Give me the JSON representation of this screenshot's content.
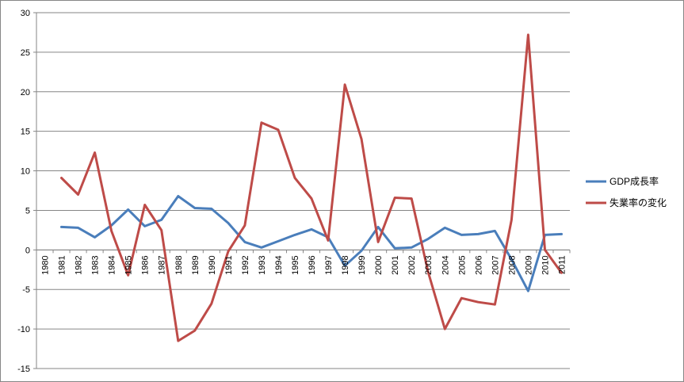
{
  "chart_data": {
    "type": "line",
    "title": "",
    "xlabel": "",
    "ylabel": "",
    "ylim": [
      -15,
      30
    ],
    "yticks": [
      -15,
      -10,
      -5,
      0,
      5,
      10,
      15,
      20,
      25,
      30
    ],
    "grid": true,
    "legend_position": "right",
    "categories": [
      "1980",
      "1981",
      "1982",
      "1983",
      "1984",
      "1985",
      "1986",
      "1987",
      "1988",
      "1989",
      "1990",
      "1991",
      "1992",
      "1993",
      "1994",
      "1995",
      "1996",
      "1997",
      "1998",
      "1999",
      "2000",
      "2001",
      "2002",
      "2003",
      "2004",
      "2005",
      "2006",
      "2007",
      "2008",
      "2009",
      "2010",
      "2011"
    ],
    "series": [
      {
        "name": "GDP成長率",
        "color": "#4A7EBB",
        "values": [
          null,
          2.9,
          2.8,
          1.6,
          3.1,
          5.1,
          3.0,
          3.8,
          6.8,
          5.3,
          5.2,
          3.4,
          1.0,
          0.3,
          1.1,
          1.9,
          2.6,
          1.6,
          -2.0,
          -0.1,
          2.9,
          0.2,
          0.3,
          1.4,
          2.8,
          1.9,
          2.0,
          2.4,
          -1.2,
          -5.2,
          1.9,
          2.0
        ]
      },
      {
        "name": "失業率の変化",
        "color": "#BE4B48",
        "values": [
          null,
          9.1,
          7.0,
          12.3,
          2.4,
          -3.2,
          5.7,
          2.5,
          -11.5,
          -10.2,
          -6.8,
          -0.2,
          3.1,
          16.1,
          15.2,
          9.1,
          6.5,
          1.2,
          20.9,
          14.0,
          1.0,
          6.6,
          6.5,
          -2.8,
          -10.0,
          -6.1,
          -6.6,
          -6.9,
          3.8,
          27.2,
          0.0,
          -2.9
        ]
      }
    ]
  }
}
